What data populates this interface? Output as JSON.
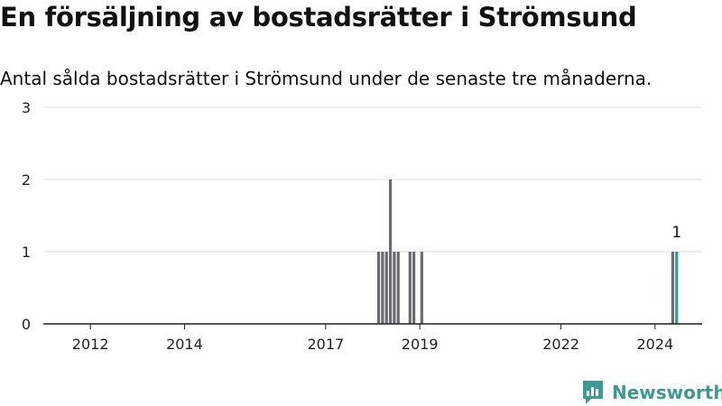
{
  "title": "En försäljning av bostadsrätter i Strömsund",
  "subtitle": "Antal sålda bostadsrätter i Strömsund under de senaste tre månaderna.",
  "brand": {
    "name": "Newsworthy",
    "icon": "newsworthy-logo-icon",
    "color": "#3d9a92"
  },
  "chart_data": {
    "type": "bar",
    "title": "En försäljning av bostadsrätter i Strömsund",
    "subtitle": "Antal sålda bostadsrätter i Strömsund under de senaste tre månaderna.",
    "xlabel": "",
    "ylabel": "",
    "ylim": [
      0,
      3
    ],
    "yticks": [
      0,
      1,
      2,
      3
    ],
    "xlim": [
      "2011-01",
      "2025-01"
    ],
    "xticks": [
      "2012",
      "2014",
      "2017",
      "2019",
      "2022",
      "2024"
    ],
    "grid": true,
    "bar_color": "#6b6b6f",
    "highlight_color": "#2a9d8f",
    "x": [
      "2018-02",
      "2018-03",
      "2018-04",
      "2018-05",
      "2018-06",
      "2018-07",
      "2018-10",
      "2018-11",
      "2019-01",
      "2024-05",
      "2024-06"
    ],
    "values": [
      1,
      1,
      1,
      2,
      1,
      1,
      1,
      1,
      1,
      1,
      1
    ],
    "highlight": [
      false,
      false,
      false,
      false,
      false,
      false,
      false,
      false,
      false,
      false,
      true
    ],
    "annotations": [
      {
        "x": "2024-06",
        "value": 1,
        "text": "1"
      }
    ]
  }
}
